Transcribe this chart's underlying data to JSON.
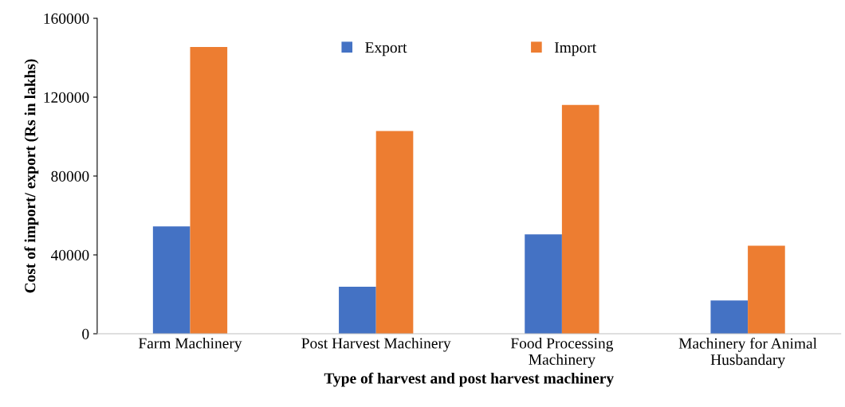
{
  "chart_data": {
    "type": "bar",
    "categories": [
      "Farm Machinery",
      "Post Harvest Machinery",
      "Food Processing\nMachinery",
      "Machinery for Animal\nHusbandary"
    ],
    "series": [
      {
        "name": "Export",
        "color": "#4472c4",
        "values": [
          54400,
          23800,
          50400,
          16900
        ]
      },
      {
        "name": "Import",
        "color": "#ed7d31",
        "values": [
          145500,
          102800,
          116100,
          44700
        ]
      }
    ],
    "xlabel": "Type of harvest and post harvest machinery",
    "ylabel": "Cost of import/ export (Rs in lakhs)",
    "ylim": [
      0,
      160000
    ],
    "yticks": [
      0,
      40000,
      80000,
      120000,
      160000
    ],
    "grid": false,
    "legend": "top"
  }
}
